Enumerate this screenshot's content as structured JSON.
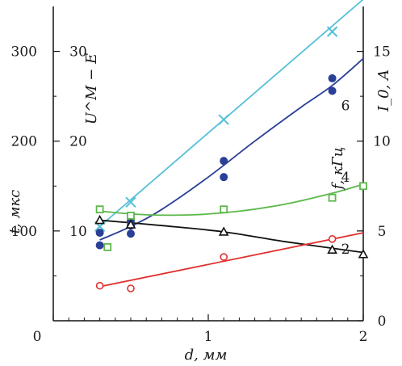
{
  "chart_data": {
    "type": "scatter",
    "title": "",
    "xlabel": "d, мм",
    "xlim": [
      0,
      2
    ],
    "x_ticks": [
      0,
      1,
      2
    ],
    "axes": {
      "left_outer": {
        "label": "t, мкс",
        "ylim": [
          0,
          350
        ],
        "ticks": [
          100,
          200,
          300
        ]
      },
      "left_inner": {
        "label": "U^M − E",
        "ylim": [
          0,
          35
        ],
        "ticks": [
          10,
          20,
          30
        ]
      },
      "right_outer": {
        "label": "I_0, A",
        "ylim": [
          0,
          17.5
        ],
        "ticks": [
          0,
          5,
          10,
          15
        ]
      },
      "right_inner": {
        "label": "f, кГц",
        "ylim": [
          0,
          8.75
        ],
        "ticks": [
          2,
          4,
          6
        ]
      }
    },
    "series": [
      {
        "color": "#55c0d6",
        "marker": "x",
        "x": [
          0.3,
          0.5,
          1.1,
          1.8
        ],
        "y": [
          105,
          132,
          224,
          322
        ],
        "fit_x": [
          0.3,
          2.0
        ],
        "fit_y": [
          105,
          358
        ]
      },
      {
        "color": "#2a3f96",
        "marker": "filled-circle",
        "x": [
          0.3,
          0.3,
          0.5,
          0.5,
          0.5,
          1.1,
          1.1,
          1.8,
          1.8
        ],
        "y": [
          84,
          98,
          97,
          106,
          111,
          160,
          178,
          256,
          270
        ],
        "fit_x": [
          0.3,
          0.5,
          0.7,
          1.0,
          1.3,
          1.6,
          1.8,
          2.0
        ],
        "fit_y": [
          90,
          105,
          124,
          160,
          200,
          238,
          262,
          292
        ]
      },
      {
        "color": "#5cb84a",
        "marker": "open-square",
        "x": [
          0.3,
          0.35,
          0.5,
          1.1,
          1.8,
          2.0
        ],
        "y": [
          124,
          82,
          117,
          124,
          137,
          150
        ],
        "fit_x": [
          0.3,
          0.6,
          0.9,
          1.2,
          1.5,
          1.8,
          2.0
        ],
        "fit_y": [
          122,
          118,
          118,
          122,
          130,
          142,
          152
        ]
      },
      {
        "color": "#111111",
        "marker": "open-triangle",
        "x": [
          0.3,
          0.5,
          1.1,
          1.8,
          2.0
        ],
        "y": [
          112,
          107,
          99,
          79,
          74
        ],
        "fit_x": [
          0.3,
          0.7,
          1.1,
          1.5,
          2.0
        ],
        "fit_y": [
          112,
          106,
          99,
          88,
          76
        ]
      },
      {
        "color": "#e03030",
        "marker": "open-circle",
        "x": [
          0.3,
          0.5,
          1.1,
          1.8
        ],
        "y": [
          39,
          36,
          71,
          91
        ],
        "fit_x": [
          0.3,
          2.0
        ],
        "fit_y": [
          38,
          98
        ]
      }
    ],
    "grid": false,
    "legend": "none"
  }
}
